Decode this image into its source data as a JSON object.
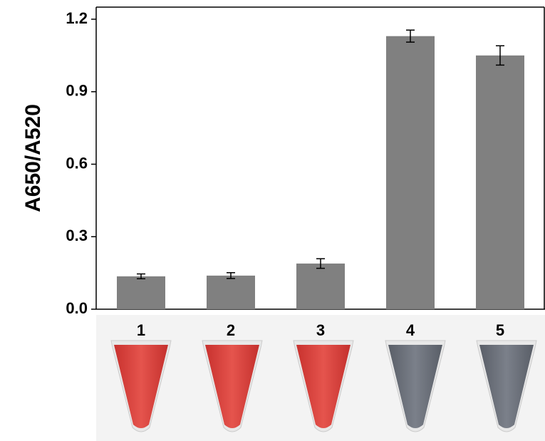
{
  "chart_data": {
    "type": "bar",
    "y_label": "A650/A520",
    "categories": [
      "1",
      "2",
      "3",
      "4",
      "5"
    ],
    "values": [
      0.136,
      0.139,
      0.189,
      1.13,
      1.05
    ],
    "errors": [
      0.01,
      0.012,
      0.02,
      0.025,
      0.04
    ],
    "color": "#808080",
    "ylim": [
      0,
      1.25
    ],
    "yticks": [
      {
        "value": 0,
        "label": "0.0"
      },
      0.3,
      0.6,
      0.9,
      1.2
    ]
  }
}
